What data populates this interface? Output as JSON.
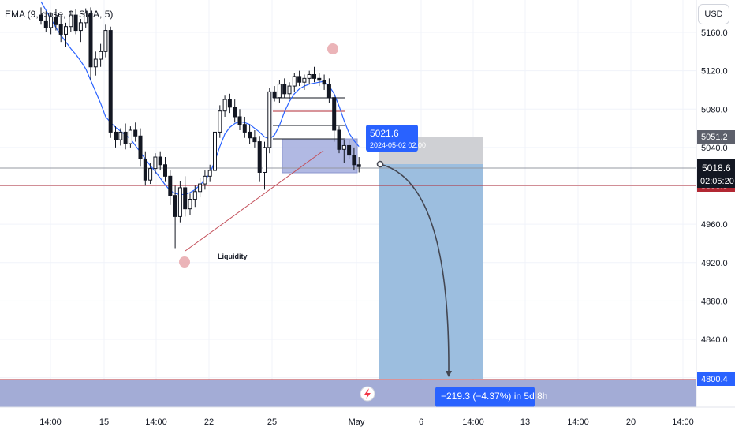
{
  "indicator_legend": "EMA (9, close, 0, SMA, 5)",
  "currency_button": "USD",
  "chart_data": {
    "type": "candlestick",
    "symbol_currency": "USD",
    "indicator": "EMA (9, close, 0, SMA, 5)",
    "y_ticks": [
      "5160.0",
      "5120.0",
      "5080.0",
      "5040.0",
      "4960.0",
      "4920.0",
      "4880.0",
      "4840.0"
    ],
    "x_ticks": [
      "14:00",
      "15",
      "14:00",
      "22",
      "25",
      "May",
      "6",
      "14:00",
      "13",
      "14:00",
      "20",
      "14:00"
    ],
    "ylim": [
      4778,
      5182
    ],
    "price_labels": {
      "current_price": "5018.6",
      "countdown": "02:05:20",
      "target_price": "4800.4",
      "box_top_price": "5051.2",
      "hidden_level": "5000.0"
    },
    "levels": {
      "current_price": 5018.6,
      "red_line": 5000,
      "target": 4800.4,
      "box_top": 5051.2
    },
    "annotations": {
      "liquidity_label": "Liquidity",
      "point_price": "5021.6",
      "point_time": "2024-05-02 02:00",
      "projection_label": "−219.3 (−4.37%) in 5d 8h"
    },
    "ema": [
      5192,
      5183,
      5174,
      5165,
      5157,
      5150,
      5143,
      5137,
      5130,
      5122,
      5110,
      5098,
      5086,
      5072,
      5066,
      5061,
      5057,
      5053,
      5049,
      5042,
      5035,
      5028,
      5021,
      5015,
      5008,
      5001,
      4995,
      4992,
      4991,
      4991,
      4993,
      4996,
      5001,
      5006,
      5013,
      5026,
      5041,
      5054,
      5061,
      5065,
      5067,
      5066,
      5064,
      5060,
      5056,
      5051,
      5049,
      5053,
      5063,
      5077,
      5088,
      5096,
      5101,
      5104,
      5106,
      5107,
      5108,
      5109,
      5104,
      5096,
      5083,
      5068,
      5055,
      5047,
      5041
    ],
    "candles": [
      {
        "o": 5178,
        "h": 5186,
        "l": 5168,
        "c": 5172
      },
      {
        "o": 5172,
        "h": 5182,
        "l": 5160,
        "c": 5165
      },
      {
        "o": 5165,
        "h": 5180,
        "l": 5158,
        "c": 5176
      },
      {
        "o": 5176,
        "h": 5184,
        "l": 5162,
        "c": 5168
      },
      {
        "o": 5168,
        "h": 5178,
        "l": 5150,
        "c": 5158
      },
      {
        "o": 5158,
        "h": 5170,
        "l": 5145,
        "c": 5166
      },
      {
        "o": 5166,
        "h": 5182,
        "l": 5160,
        "c": 5178
      },
      {
        "o": 5178,
        "h": 5184,
        "l": 5158,
        "c": 5162
      },
      {
        "o": 5162,
        "h": 5174,
        "l": 5150,
        "c": 5170
      },
      {
        "o": 5170,
        "h": 5185,
        "l": 5165,
        "c": 5180
      },
      {
        "o": 5180,
        "h": 5186,
        "l": 5110,
        "c": 5124
      },
      {
        "o": 5124,
        "h": 5140,
        "l": 5115,
        "c": 5132
      },
      {
        "o": 5132,
        "h": 5148,
        "l": 5124,
        "c": 5140
      },
      {
        "o": 5140,
        "h": 5168,
        "l": 5134,
        "c": 5162
      },
      {
        "o": 5162,
        "h": 5166,
        "l": 5050,
        "c": 5056
      },
      {
        "o": 5056,
        "h": 5062,
        "l": 5040,
        "c": 5048
      },
      {
        "o": 5048,
        "h": 5060,
        "l": 5042,
        "c": 5056
      },
      {
        "o": 5056,
        "h": 5065,
        "l": 5038,
        "c": 5044
      },
      {
        "o": 5044,
        "h": 5062,
        "l": 5040,
        "c": 5058
      },
      {
        "o": 5058,
        "h": 5066,
        "l": 5046,
        "c": 5052
      },
      {
        "o": 5052,
        "h": 5060,
        "l": 5020,
        "c": 5028
      },
      {
        "o": 5028,
        "h": 5036,
        "l": 5000,
        "c": 5006
      },
      {
        "o": 5006,
        "h": 5024,
        "l": 5002,
        "c": 5018
      },
      {
        "o": 5018,
        "h": 5034,
        "l": 5012,
        "c": 5030
      },
      {
        "o": 5030,
        "h": 5036,
        "l": 5016,
        "c": 5022
      },
      {
        "o": 5022,
        "h": 5030,
        "l": 5004,
        "c": 5010
      },
      {
        "o": 5010,
        "h": 5016,
        "l": 4980,
        "c": 4990
      },
      {
        "o": 4990,
        "h": 5000,
        "l": 4935,
        "c": 4968
      },
      {
        "o": 4968,
        "h": 5005,
        "l": 4962,
        "c": 4998
      },
      {
        "o": 4998,
        "h": 5010,
        "l": 4968,
        "c": 4976
      },
      {
        "o": 4976,
        "h": 4992,
        "l": 4970,
        "c": 4986
      },
      {
        "o": 4986,
        "h": 5000,
        "l": 4978,
        "c": 4994
      },
      {
        "o": 4994,
        "h": 5008,
        "l": 4988,
        "c": 5002
      },
      {
        "o": 5002,
        "h": 5016,
        "l": 4996,
        "c": 5010
      },
      {
        "o": 5010,
        "h": 5022,
        "l": 5004,
        "c": 5016
      },
      {
        "o": 5016,
        "h": 5060,
        "l": 5012,
        "c": 5056
      },
      {
        "o": 5056,
        "h": 5084,
        "l": 5050,
        "c": 5078
      },
      {
        "o": 5078,
        "h": 5094,
        "l": 5072,
        "c": 5090
      },
      {
        "o": 5090,
        "h": 5096,
        "l": 5076,
        "c": 5082
      },
      {
        "o": 5082,
        "h": 5090,
        "l": 5066,
        "c": 5072
      },
      {
        "o": 5072,
        "h": 5080,
        "l": 5058,
        "c": 5064
      },
      {
        "o": 5064,
        "h": 5072,
        "l": 5050,
        "c": 5056
      },
      {
        "o": 5056,
        "h": 5064,
        "l": 5044,
        "c": 5050
      },
      {
        "o": 5050,
        "h": 5058,
        "l": 5040,
        "c": 5046
      },
      {
        "o": 5046,
        "h": 5052,
        "l": 5004,
        "c": 5014
      },
      {
        "o": 5014,
        "h": 5046,
        "l": 4996,
        "c": 5040
      },
      {
        "o": 5040,
        "h": 5102,
        "l": 5034,
        "c": 5098
      },
      {
        "o": 5098,
        "h": 5104,
        "l": 5088,
        "c": 5092
      },
      {
        "o": 5092,
        "h": 5110,
        "l": 5086,
        "c": 5106
      },
      {
        "o": 5106,
        "h": 5112,
        "l": 5092,
        "c": 5096
      },
      {
        "o": 5096,
        "h": 5108,
        "l": 5090,
        "c": 5104
      },
      {
        "o": 5104,
        "h": 5118,
        "l": 5098,
        "c": 5114
      },
      {
        "o": 5114,
        "h": 5120,
        "l": 5104,
        "c": 5108
      },
      {
        "o": 5108,
        "h": 5116,
        "l": 5100,
        "c": 5112
      },
      {
        "o": 5112,
        "h": 5120,
        "l": 5106,
        "c": 5116
      },
      {
        "o": 5116,
        "h": 5124,
        "l": 5108,
        "c": 5112
      },
      {
        "o": 5112,
        "h": 5118,
        "l": 5104,
        "c": 5110
      },
      {
        "o": 5110,
        "h": 5116,
        "l": 5100,
        "c": 5106
      },
      {
        "o": 5106,
        "h": 5112,
        "l": 5086,
        "c": 5092
      },
      {
        "o": 5092,
        "h": 5096,
        "l": 5046,
        "c": 5058
      },
      {
        "o": 5058,
        "h": 5062,
        "l": 5034,
        "c": 5038
      },
      {
        "o": 5038,
        "h": 5048,
        "l": 5024,
        "c": 5042
      },
      {
        "o": 5042,
        "h": 5048,
        "l": 5028,
        "c": 5032
      },
      {
        "o": 5032,
        "h": 5040,
        "l": 5016,
        "c": 5022
      },
      {
        "o": 5022,
        "h": 5030,
        "l": 5014,
        "c": 5020
      }
    ]
  }
}
